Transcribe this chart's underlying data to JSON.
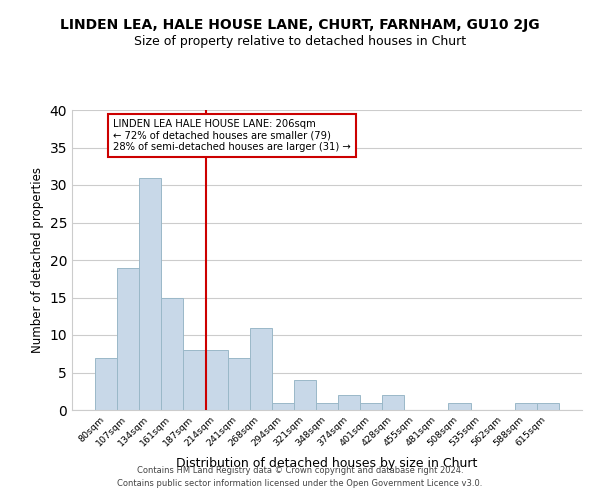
{
  "title": "LINDEN LEA, HALE HOUSE LANE, CHURT, FARNHAM, GU10 2JG",
  "subtitle": "Size of property relative to detached houses in Churt",
  "xlabel": "Distribution of detached houses by size in Churt",
  "ylabel": "Number of detached properties",
  "categories": [
    "80sqm",
    "107sqm",
    "134sqm",
    "161sqm",
    "187sqm",
    "214sqm",
    "241sqm",
    "268sqm",
    "294sqm",
    "321sqm",
    "348sqm",
    "374sqm",
    "401sqm",
    "428sqm",
    "455sqm",
    "481sqm",
    "508sqm",
    "535sqm",
    "562sqm",
    "588sqm",
    "615sqm"
  ],
  "values": [
    7,
    19,
    31,
    15,
    8,
    8,
    7,
    11,
    1,
    4,
    1,
    2,
    1,
    2,
    0,
    0,
    1,
    0,
    0,
    1,
    1
  ],
  "bar_color": "#c8d8e8",
  "bar_edge_color": "#9ab8c8",
  "reference_line_index": 5,
  "reference_label": "LINDEN LEA HALE HOUSE LANE: 206sqm",
  "ref_line1": "← 72% of detached houses are smaller (79)",
  "ref_line2": "28% of semi-detached houses are larger (31) →",
  "ref_line_color": "#cc0000",
  "ylim": [
    0,
    40
  ],
  "yticks": [
    0,
    5,
    10,
    15,
    20,
    25,
    30,
    35,
    40
  ],
  "footer1": "Contains HM Land Registry data © Crown copyright and database right 2024.",
  "footer2": "Contains public sector information licensed under the Open Government Licence v3.0.",
  "background_color": "#ffffff",
  "grid_color": "#cccccc"
}
